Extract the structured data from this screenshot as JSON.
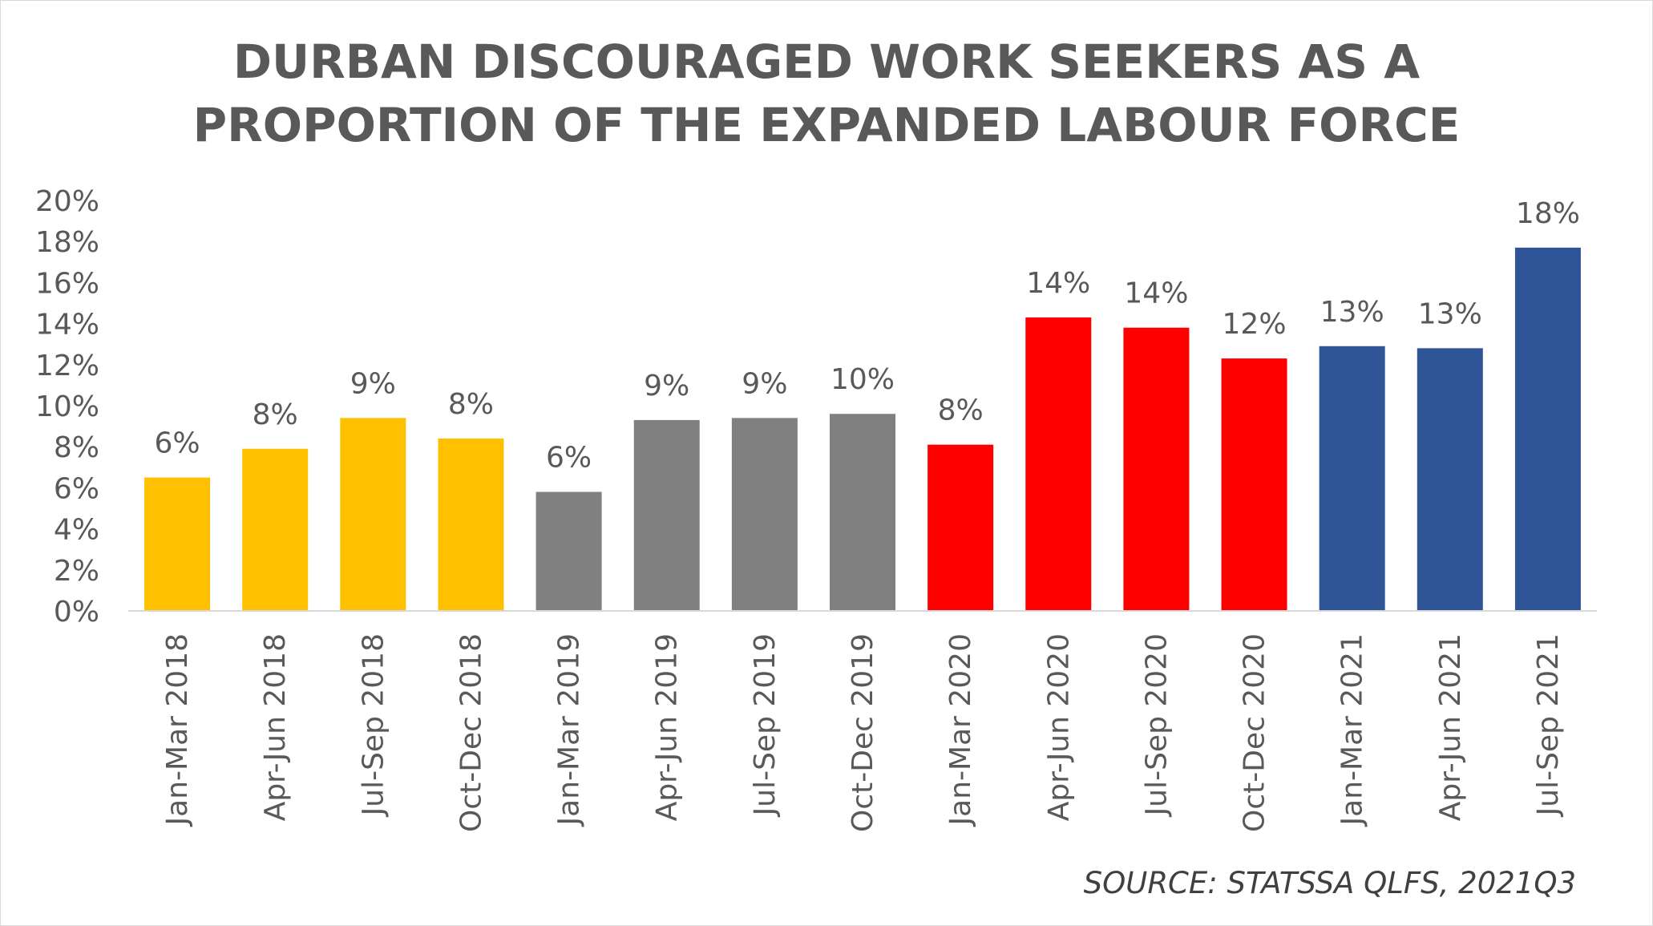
{
  "chart_data": {
    "type": "bar",
    "title_lines": [
      "DURBAN DISCOURAGED WORK SEEKERS AS A",
      "PROPORTION OF THE EXPANDED LABOUR FORCE"
    ],
    "xlabel": "",
    "ylabel": "",
    "ylim": [
      0,
      20
    ],
    "yticks": [
      "0%",
      "2%",
      "4%",
      "6%",
      "8%",
      "10%",
      "12%",
      "14%",
      "16%",
      "18%",
      "20%"
    ],
    "ytick_values": [
      0,
      2,
      4,
      6,
      8,
      10,
      12,
      14,
      16,
      18,
      20
    ],
    "grid": false,
    "legend": "none",
    "categories": [
      "Jan-Mar 2018",
      "Apr-Jun 2018",
      "Jul-Sep 2018",
      "Oct-Dec 2018",
      "Jan-Mar 2019",
      "Apr-Jun 2019",
      "Jul-Sep 2019",
      "Oct-Dec 2019",
      "Jan-Mar 2020",
      "Apr-Jun 2020",
      "Jul-Sep 2020",
      "Oct-Dec 2020",
      "Jan-Mar 2021",
      "Apr-Jun 2021",
      "Jul-Sep 2021"
    ],
    "values": [
      6.5,
      7.9,
      9.4,
      8.4,
      5.8,
      9.3,
      9.4,
      9.6,
      8.1,
      14.3,
      13.8,
      12.3,
      12.9,
      12.8,
      17.7
    ],
    "data_labels": [
      "6%",
      "8%",
      "9%",
      "8%",
      "6%",
      "9%",
      "9%",
      "10%",
      "8%",
      "14%",
      "14%",
      "12%",
      "13%",
      "13%",
      "18%"
    ],
    "bar_colors": [
      "#FFC000",
      "#FFC000",
      "#FFC000",
      "#FFC000",
      "#808080",
      "#808080",
      "#808080",
      "#808080",
      "#FF0000",
      "#FF0000",
      "#FF0000",
      "#FF0000",
      "#2F5597",
      "#2F5597",
      "#2F5597"
    ]
  },
  "source_note": "SOURCE: STATSSA QLFS, 2021Q3"
}
